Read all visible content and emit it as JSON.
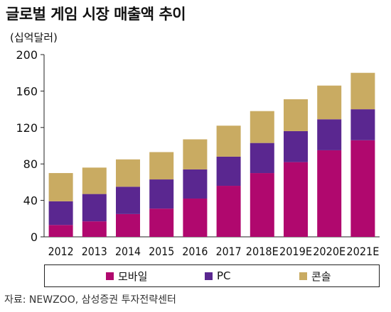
{
  "title": "글로벌 게임 시장 매출액 추이",
  "unit_label": "(십억달러)",
  "source": "자료: NEWZOO, 삼성증권 투자전략센터",
  "colors": {
    "mobile": "#b0086e",
    "pc": "#5a2790",
    "console": "#c9ab62"
  },
  "chart_data": {
    "type": "bar",
    "stacked": true,
    "categories": [
      "2012",
      "2013",
      "2014",
      "2015",
      "2016",
      "2017",
      "2018E",
      "2019E",
      "2020E",
      "2021E"
    ],
    "series": [
      {
        "name": "모바일",
        "values": [
          13,
          17,
          25,
          31,
          42,
          56,
          70,
          82,
          95,
          106
        ]
      },
      {
        "name": "PC",
        "values": [
          26,
          30,
          30,
          32,
          32,
          32,
          33,
          34,
          34,
          34
        ]
      },
      {
        "name": "콘솔",
        "values": [
          31,
          29,
          30,
          30,
          33,
          34,
          35,
          35,
          37,
          40
        ]
      }
    ],
    "yticks": [
      "0",
      "40",
      "80",
      "120",
      "160",
      "200"
    ],
    "ylim": [
      0,
      200
    ],
    "legend_position": "bottom"
  }
}
